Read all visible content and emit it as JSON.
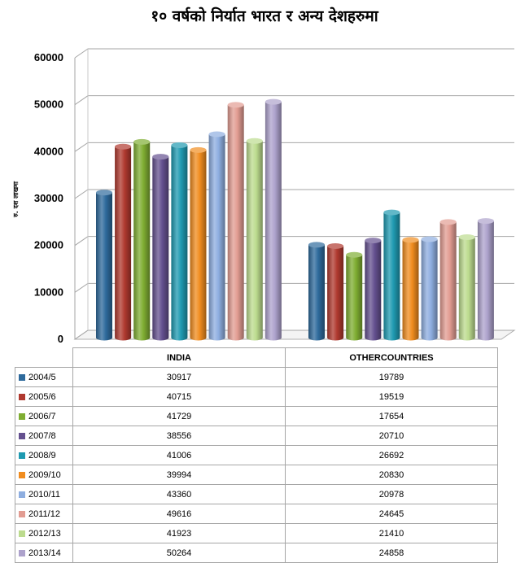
{
  "title": "१० वर्षको निर्यात भारत र अन्य देशहरुमा",
  "chart_data": {
    "type": "bar",
    "title": "१० वर्षको निर्यात भारत र अन्य देशहरुमा",
    "ylabel": "रु. दश लाखमा",
    "xlabel": "",
    "ylim": [
      0,
      60000
    ],
    "yticks": [
      0,
      10000,
      20000,
      30000,
      40000,
      50000,
      60000
    ],
    "grid": true,
    "legend": "table-below",
    "categories": [
      "INDIA",
      "OTHER COUNTRIES"
    ],
    "series": [
      {
        "name": "2004/5",
        "color": "#2e6a9c",
        "values": [
          30917,
          19789
        ]
      },
      {
        "name": "2005/6",
        "color": "#b0392f",
        "values": [
          40715,
          19519
        ]
      },
      {
        "name": "2006/7",
        "color": "#7fad32",
        "values": [
          41729,
          17654
        ]
      },
      {
        "name": "2007/8",
        "color": "#64508f",
        "values": [
          38556,
          20710
        ]
      },
      {
        "name": "2008/9",
        "color": "#1f9ab1",
        "values": [
          41006,
          26692
        ]
      },
      {
        "name": "2009/10",
        "color": "#f08c1f",
        "values": [
          39994,
          20830
        ]
      },
      {
        "name": "2010/11",
        "color": "#8eaee0",
        "values": [
          43360,
          20978
        ]
      },
      {
        "name": "2011/12",
        "color": "#e29c92",
        "values": [
          49616,
          24645
        ]
      },
      {
        "name": "2012/13",
        "color": "#bcdb8e",
        "values": [
          41923,
          21410
        ]
      },
      {
        "name": "2013/14",
        "color": "#ada2cc",
        "values": [
          50264,
          24858
        ]
      }
    ]
  },
  "table": {
    "col_india": "INDIA",
    "col_other": "OTHERCOUNTRIES"
  }
}
